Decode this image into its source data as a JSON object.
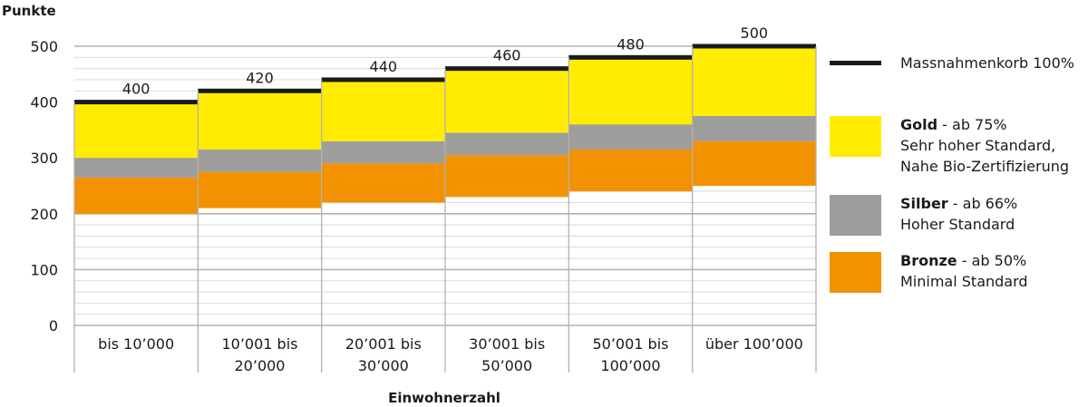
{
  "chart_data": {
    "type": "bar",
    "ylabel": "Punkte",
    "xlabel": "Einwohnerzahl",
    "ylim": [
      0,
      500
    ],
    "yticks": [
      0,
      100,
      200,
      300,
      400,
      500
    ],
    "categories": [
      [
        "bis 10’000"
      ],
      [
        "10’001 bis",
        "20’000"
      ],
      [
        "20’001 bis",
        "30’000"
      ],
      [
        "30’001 bis",
        "50’000"
      ],
      [
        "50’001 bis",
        "100’000"
      ],
      [
        "über 100’000"
      ]
    ],
    "totals": [
      400,
      420,
      440,
      460,
      480,
      500
    ],
    "bands": {
      "bronze": [
        [
          200,
          265
        ],
        [
          210,
          275
        ],
        [
          220,
          290
        ],
        [
          230,
          305
        ],
        [
          240,
          315
        ],
        [
          250,
          330
        ]
      ],
      "silber": [
        [
          265,
          300
        ],
        [
          275,
          315
        ],
        [
          290,
          330
        ],
        [
          305,
          345
        ],
        [
          315,
          360
        ],
        [
          330,
          375
        ]
      ],
      "gold": [
        [
          300,
          400
        ],
        [
          315,
          420
        ],
        [
          330,
          440
        ],
        [
          345,
          460
        ],
        [
          360,
          480
        ],
        [
          375,
          500
        ]
      ]
    },
    "colors": {
      "gold": "#ffec00",
      "silber": "#9d9d9c",
      "bronze": "#f39200",
      "total_line": "#1a1a1a",
      "grid_major": "#b2b2b2",
      "grid_minor": "#d9d9d9"
    },
    "grid": true,
    "legend": {
      "position": "right",
      "items": [
        {
          "key": "total",
          "bold": "",
          "text": "Massnahmenkorb 100%",
          "lines": []
        },
        {
          "key": "gold",
          "bold": "Gold",
          "text": " - ab 75%",
          "lines": [
            "Sehr hoher Standard,",
            "Nahe Bio-Zertifizierung"
          ]
        },
        {
          "key": "silber",
          "bold": "Silber",
          "text": " - ab 66%",
          "lines": [
            "Hoher Standard"
          ]
        },
        {
          "key": "bronze",
          "bold": "Bronze",
          "text": " - ab 50%",
          "lines": [
            "Minimal Standard"
          ]
        }
      ]
    }
  }
}
